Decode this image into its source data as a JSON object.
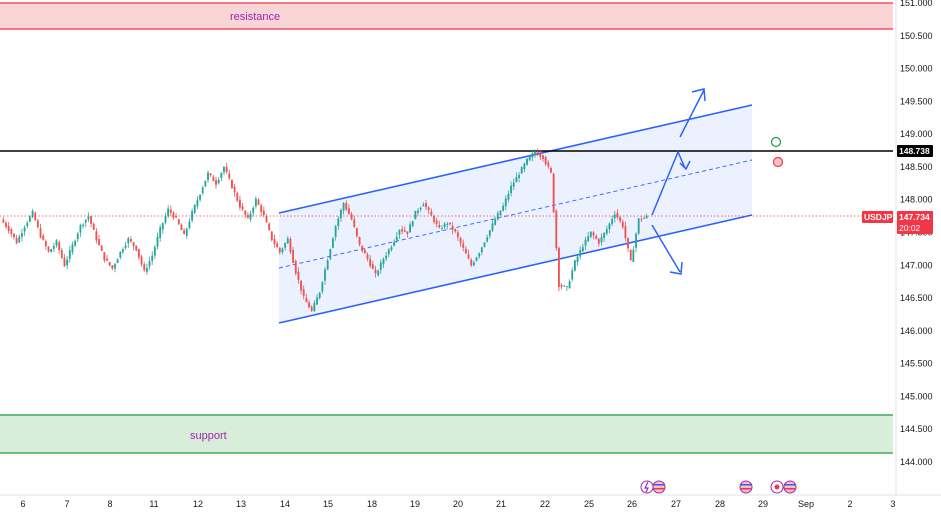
{
  "colors": {
    "up": "#26a69a",
    "down": "#ef5350",
    "channel": "#2962ff",
    "resistance_fill": "#f8d0d3",
    "resistance_line": "#f23645",
    "support_fill": "#d4ebd6",
    "support_line": "#1b9e3e",
    "key_level_line": "#000000",
    "price_line": "#f23645"
  },
  "chart_data": {
    "type": "candlestick",
    "symbol": "USDJPY",
    "current_price": "147.734",
    "countdown": "20:02",
    "key_level": "148.738",
    "ylim": [
      143.85,
      151.05
    ],
    "y_ticks": [
      "151.000",
      "150.500",
      "150.000",
      "149.500",
      "149.000",
      "148.500",
      "148.000",
      "147.500",
      "147.000",
      "146.500",
      "146.000",
      "145.500",
      "145.000",
      "144.500",
      "144.000"
    ],
    "x_ticks": [
      "6",
      "7",
      "8",
      "11",
      "12",
      "13",
      "14",
      "15",
      "18",
      "19",
      "20",
      "21",
      "22",
      "25",
      "26",
      "27",
      "28",
      "29",
      "Sep",
      "2",
      "3"
    ],
    "zones": [
      {
        "label": "resistance",
        "top": 151.05,
        "bottom": 150.6
      },
      {
        "label": "support",
        "top": 144.7,
        "bottom": 144.12
      }
    ],
    "channel": {
      "upper": {
        "start": [
          0,
          147.95
        ],
        "end": [
          1,
          149.43
        ]
      },
      "lower": {
        "start": [
          0,
          146.14
        ],
        "end": [
          1,
          147.77
        ]
      },
      "mid": {
        "start": [
          0,
          146.98
        ],
        "end": [
          1,
          148.6
        ]
      }
    },
    "price_path": [
      [
        147.7,
        147.55
      ],
      [
        147.55,
        147.35
      ],
      [
        147.35,
        147.6
      ],
      [
        147.6,
        147.8
      ],
      [
        147.8,
        147.45
      ],
      [
        147.45,
        147.2
      ],
      [
        147.2,
        147.35
      ],
      [
        147.35,
        147.0
      ],
      [
        147.0,
        147.3
      ],
      [
        147.3,
        147.6
      ],
      [
        147.6,
        147.75
      ],
      [
        147.75,
        147.4
      ],
      [
        147.4,
        147.1
      ],
      [
        147.1,
        146.95
      ],
      [
        146.95,
        147.2
      ],
      [
        147.2,
        147.4
      ],
      [
        147.4,
        147.25
      ],
      [
        147.25,
        146.9
      ],
      [
        146.9,
        147.15
      ],
      [
        147.15,
        147.55
      ],
      [
        147.55,
        147.85
      ],
      [
        147.85,
        147.7
      ],
      [
        147.7,
        147.45
      ],
      [
        147.45,
        147.8
      ],
      [
        147.8,
        148.1
      ],
      [
        148.1,
        148.4
      ],
      [
        148.4,
        148.25
      ],
      [
        148.25,
        148.5
      ],
      [
        148.5,
        148.2
      ],
      [
        148.2,
        147.9
      ],
      [
        147.9,
        147.7
      ],
      [
        147.7,
        148.0
      ],
      [
        148.0,
        147.75
      ],
      [
        147.75,
        147.4
      ],
      [
        147.4,
        147.2
      ],
      [
        147.2,
        147.4
      ],
      [
        147.4,
        146.9
      ],
      [
        146.9,
        146.5
      ],
      [
        146.5,
        146.3
      ],
      [
        146.3,
        146.6
      ],
      [
        146.6,
        147.1
      ],
      [
        147.1,
        147.6
      ],
      [
        147.6,
        147.95
      ],
      [
        147.95,
        147.7
      ],
      [
        147.7,
        147.3
      ],
      [
        147.3,
        147.1
      ],
      [
        147.1,
        146.85
      ],
      [
        146.85,
        147.1
      ],
      [
        147.1,
        147.3
      ],
      [
        147.3,
        147.55
      ],
      [
        147.55,
        147.5
      ],
      [
        147.5,
        147.8
      ],
      [
        147.8,
        147.95
      ],
      [
        147.95,
        147.75
      ],
      [
        147.75,
        147.55
      ],
      [
        147.55,
        147.65
      ],
      [
        147.65,
        147.5
      ],
      [
        147.5,
        147.25
      ],
      [
        147.25,
        147.0
      ],
      [
        147.0,
        147.2
      ],
      [
        147.2,
        147.45
      ],
      [
        147.45,
        147.7
      ],
      [
        147.7,
        147.9
      ],
      [
        147.9,
        148.2
      ],
      [
        148.2,
        148.4
      ],
      [
        148.4,
        148.6
      ],
      [
        148.6,
        148.73
      ],
      [
        148.73,
        148.65
      ],
      [
        148.65,
        148.4
      ],
      [
        148.4,
        146.7
      ],
      [
        146.7,
        146.65
      ],
      [
        146.65,
        147.05
      ],
      [
        147.05,
        147.3
      ],
      [
        147.3,
        147.5
      ],
      [
        147.5,
        147.35
      ],
      [
        147.35,
        147.55
      ],
      [
        147.55,
        147.8
      ],
      [
        147.8,
        147.6
      ],
      [
        147.6,
        147.05
      ],
      [
        147.05,
        147.7
      ],
      [
        147.7,
        147.734
      ]
    ]
  }
}
